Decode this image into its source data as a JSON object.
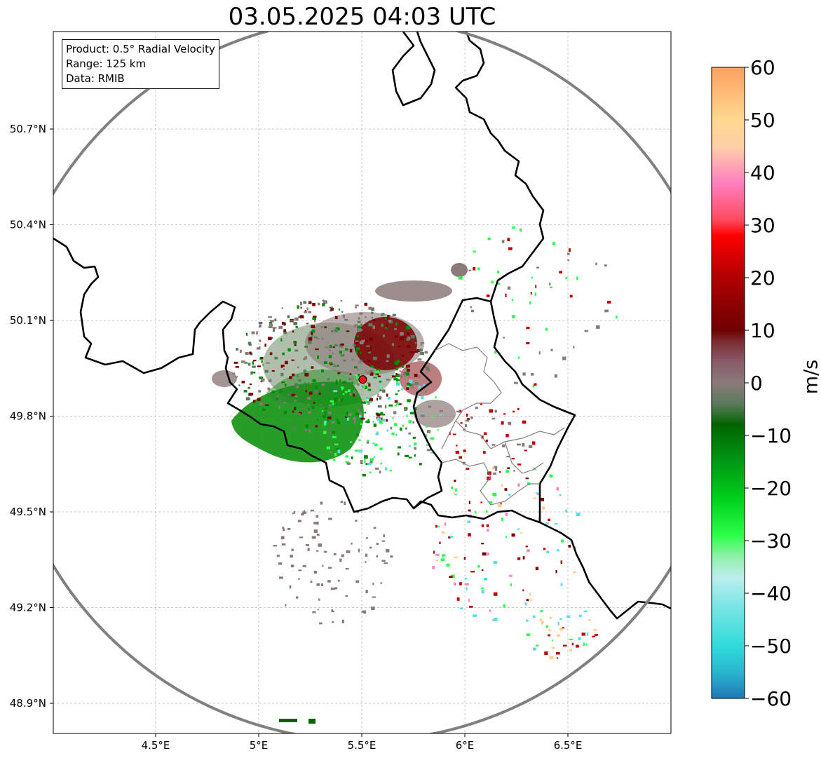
{
  "title": "03.05.2025 04:03 UTC",
  "info": {
    "product": "Product: 0.5° Radial Velocity",
    "range": "Range: 125 km",
    "source": "Data: RMIB"
  },
  "axes": {
    "lat_ticks": [
      "50.7°N",
      "50.4°N",
      "50.1°N",
      "49.8°N",
      "49.5°N",
      "49.2°N",
      "48.9°N"
    ],
    "lon_ticks": [
      "4.5°E",
      "5°E",
      "5.5°E",
      "6°E",
      "6.5°E"
    ],
    "lat_values": [
      50.7,
      50.4,
      50.1,
      49.8,
      49.5,
      49.2,
      48.9
    ],
    "lon_values": [
      4.5,
      5.0,
      5.5,
      6.0,
      6.5
    ],
    "lon_range": [
      4.0,
      7.0
    ],
    "lat_range": [
      48.8,
      51.0
    ],
    "grid": true
  },
  "radar": {
    "site_lon": 5.505,
    "site_lat": 49.915,
    "range_ring_color": "#808080",
    "site_marker_color": "#e31a1c"
  },
  "colorbar": {
    "unit": "m/s",
    "ticks": [
      "60",
      "50",
      "40",
      "30",
      "20",
      "10",
      "0",
      "−10",
      "−20",
      "−30",
      "−40",
      "−50",
      "−60"
    ],
    "min": -60,
    "max": 60,
    "stops": [
      {
        "v": -60,
        "c": "#1f78b4"
      },
      {
        "v": -55,
        "c": "#29b6d0"
      },
      {
        "v": -50,
        "c": "#31dcdc"
      },
      {
        "v": -42,
        "c": "#7fe6e6"
      },
      {
        "v": -37,
        "c": "#bdeeee"
      },
      {
        "v": -33,
        "c": "#8ff0a8"
      },
      {
        "v": -29,
        "c": "#2bff4a"
      },
      {
        "v": -22,
        "c": "#00d01a"
      },
      {
        "v": -15,
        "c": "#009914"
      },
      {
        "v": -8,
        "c": "#006400"
      },
      {
        "v": -4,
        "c": "#5a7a5a"
      },
      {
        "v": 0,
        "c": "#8a7a7a"
      },
      {
        "v": 4,
        "c": "#8a5a6a"
      },
      {
        "v": 8,
        "c": "#7a2a30"
      },
      {
        "v": 10,
        "c": "#6e0000"
      },
      {
        "v": 20,
        "c": "#b00000"
      },
      {
        "v": 28,
        "c": "#ff0000"
      },
      {
        "v": 31,
        "c": "#ff4a60"
      },
      {
        "v": 38,
        "c": "#ff80c0"
      },
      {
        "v": 45,
        "c": "#ffd0a8"
      },
      {
        "v": 50,
        "c": "#ffd890"
      },
      {
        "v": 60,
        "c": "#ffa060"
      }
    ]
  },
  "colors": {
    "border": "#000000",
    "admin_border": "#808080",
    "grid": "#b0b0b0",
    "echo_grey": "#8b7a78",
    "echo_green": "#008c00",
    "echo_darkred": "#7a0000",
    "echo_red": "#c00000",
    "echo_pink": "#ff80c0",
    "echo_cyan": "#55e0e8",
    "echo_peach": "#ffd090"
  }
}
